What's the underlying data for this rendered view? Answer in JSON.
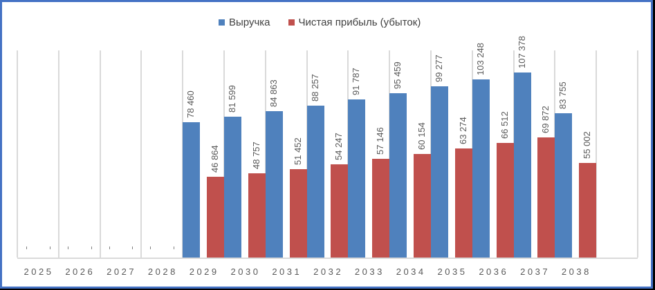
{
  "legend": {
    "items": [
      {
        "label": "Выручка",
        "color": "#4F81BD"
      },
      {
        "label": "Чистая прибыль (убыток)",
        "color": "#C0504D"
      }
    ]
  },
  "colors": {
    "revenue": "#4F81BD",
    "net_profit": "#C0504D",
    "frame": "#4472C4",
    "gridline": "#D9D9D9",
    "text": "#595959"
  },
  "chart_data": {
    "type": "bar",
    "title": "",
    "xlabel": "",
    "ylabel": "",
    "categories": [
      "2025",
      "2026",
      "2027",
      "2028",
      "2029",
      "2030",
      "2031",
      "2032",
      "2033",
      "2034",
      "2035",
      "2036",
      "2037",
      "2038"
    ],
    "series": [
      {
        "name": "Выручка",
        "color": "#4F81BD",
        "values": [
          0,
          0,
          0,
          0,
          78460,
          81599,
          84863,
          88257,
          91787,
          95459,
          99277,
          103248,
          107378,
          83755
        ],
        "labels": [
          "-",
          "-",
          "-",
          "-",
          "78 460",
          "81 599",
          "84 863",
          "88 257",
          "91 787",
          "95 459",
          "99 277",
          "103 248",
          "107 378",
          "83 755"
        ]
      },
      {
        "name": "Чистая прибыль (убыток)",
        "color": "#C0504D",
        "values": [
          0,
          0,
          0,
          0,
          46864,
          48757,
          51452,
          54247,
          57146,
          60154,
          63274,
          66512,
          69872,
          55002
        ],
        "labels": [
          "-",
          "-",
          "-",
          "-",
          "46 864",
          "48 757",
          "51 452",
          "54 247",
          "57 146",
          "60 154",
          "63 274",
          "66 512",
          "69 872",
          "55 002"
        ]
      }
    ],
    "ylim": [
      0,
      107378
    ],
    "grid": {
      "vertical": true,
      "horizontal": false
    },
    "legend_position": "top",
    "data_labels": "rotated vertical, above bars"
  }
}
